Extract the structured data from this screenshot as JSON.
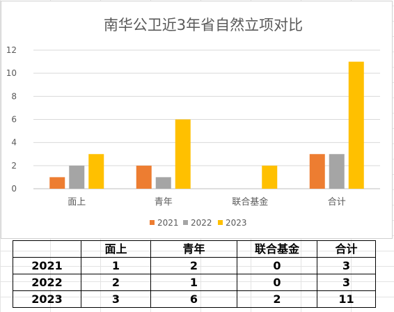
{
  "chart_data": {
    "type": "bar",
    "title": "南华公卫近3年省自然立项对比",
    "categories": [
      "面上",
      "青年",
      "联合基金",
      "合计"
    ],
    "series": [
      {
        "name": "2021",
        "values": [
          1,
          2,
          0,
          3
        ],
        "color": "#ED7D31"
      },
      {
        "name": "2022",
        "values": [
          2,
          1,
          0,
          3
        ],
        "color": "#A5A5A5"
      },
      {
        "name": "2023",
        "values": [
          3,
          6,
          2,
          11
        ],
        "color": "#FFC000"
      }
    ],
    "ylim": [
      0,
      12
    ],
    "yticks": [
      0,
      2,
      4,
      6,
      8,
      10,
      12
    ],
    "grid": true,
    "legend": "bottom",
    "xlabel": "",
    "ylabel": ""
  },
  "table": {
    "header": [
      "",
      "面上",
      "青年",
      "联合基金",
      "合计"
    ],
    "rows": [
      [
        "2021",
        "1",
        "2",
        "0",
        "3"
      ],
      [
        "2022",
        "2",
        "1",
        "0",
        "3"
      ],
      [
        "2023",
        "3",
        "6",
        "2",
        "11"
      ]
    ]
  }
}
